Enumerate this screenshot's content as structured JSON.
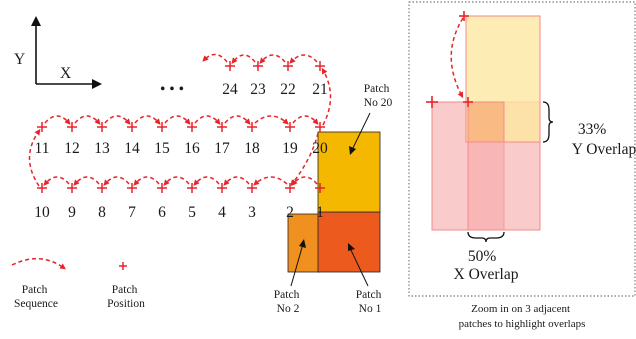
{
  "axes": {
    "y_label": "Y",
    "x_label": "X"
  },
  "ellipsis": "• • •",
  "bottom_row_numbers": [
    "10",
    "9",
    "8",
    "7",
    "6",
    "5",
    "4",
    "3",
    "2",
    "1"
  ],
  "middle_row_numbers": [
    "11",
    "12",
    "13",
    "14",
    "15",
    "16",
    "17",
    "18",
    "19",
    "20"
  ],
  "top_row_numbers": [
    "24",
    "23",
    "22",
    "21"
  ],
  "patch_labels": {
    "no20": [
      "Patch",
      "No 20"
    ],
    "no2": [
      "Patch",
      "No 2"
    ],
    "no1": [
      "Patch",
      "No 1"
    ]
  },
  "legend": {
    "sequence": [
      "Patch",
      "Sequence"
    ],
    "position": [
      "Patch",
      "Position"
    ]
  },
  "zoom_panel": {
    "y_overlap": [
      "33%",
      "Y Overlap"
    ],
    "x_overlap": [
      "50%",
      "X Overlap"
    ],
    "caption": [
      "Zoom in on 3 adjacent",
      "patches to highlight overlaps"
    ]
  },
  "colors": {
    "arrow_red": "#e8232a",
    "patch20": "#f5b800",
    "patch2": "#f0901e",
    "patch1": "#ec5a1e",
    "zoom_pink": "#f6a8a8",
    "zoom_yellow": "#fde7a0",
    "zoom_orange": "#f7b27a"
  }
}
